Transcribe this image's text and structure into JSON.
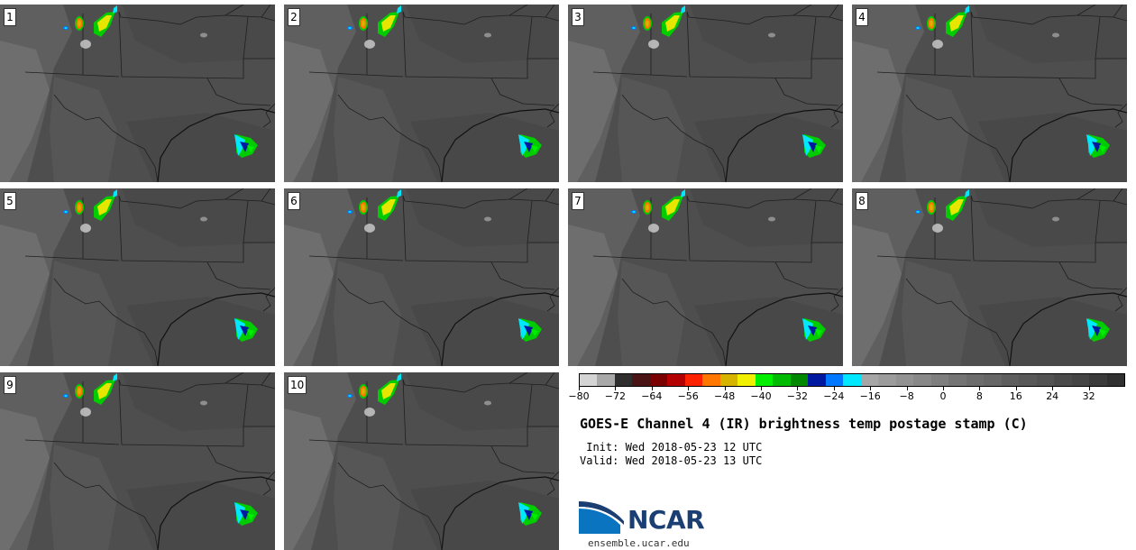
{
  "panels": [
    {
      "label": "1"
    },
    {
      "label": "2"
    },
    {
      "label": "3"
    },
    {
      "label": "4"
    },
    {
      "label": "5"
    },
    {
      "label": "6"
    },
    {
      "label": "7"
    },
    {
      "label": "8"
    },
    {
      "label": "9"
    },
    {
      "label": "10"
    }
  ],
  "colorbar": {
    "colors": [
      "#d4d4d4",
      "#a8a8a8",
      "#2e2e2e",
      "#4a1414",
      "#7a0000",
      "#b40000",
      "#ff2200",
      "#ff7700",
      "#d6b400",
      "#f0f000",
      "#00ee00",
      "#00bb00",
      "#008800",
      "#0018a0",
      "#0078ff",
      "#00e8ff",
      "#a6a6a6",
      "#9c9c9c",
      "#929292",
      "#888888",
      "#7e7e7e",
      "#747474",
      "#6c6c6c",
      "#666666",
      "#5e5e5e",
      "#585858",
      "#525252",
      "#4a4a4a",
      "#444444",
      "#3a3a3a",
      "#303030"
    ],
    "ticks": [
      "−80",
      "−72",
      "−64",
      "−56",
      "−48",
      "−40",
      "−32",
      "−24",
      "−16",
      "−8",
      "0",
      "8",
      "16",
      "24",
      "32"
    ]
  },
  "title": "GOES-E Channel 4 (IR) brightness temp postage stamp (C)",
  "init": " Init: Wed 2018-05-23 12 UTC",
  "valid": "Valid: Wed 2018-05-23 13 UTC",
  "logo": {
    "text": "NCAR",
    "url": "ensemble.ucar.edu"
  }
}
